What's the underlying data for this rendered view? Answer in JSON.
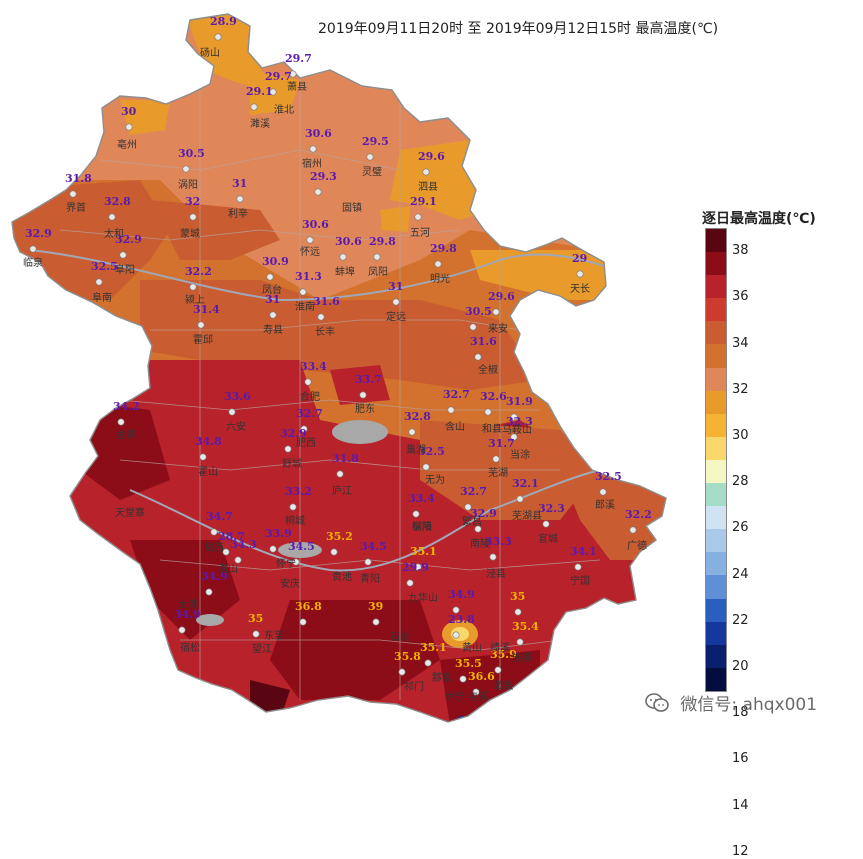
{
  "title": "2019年09月11日20时  至  2019年09月12日15时  最高温度(℃)",
  "legend": {
    "title": "逐日最高温度(℃)",
    "colors": [
      "#5a0612",
      "#8c0d18",
      "#b8222a",
      "#cc3b2e",
      "#c95d31",
      "#d2722e",
      "#e0875a",
      "#e89a2b",
      "#f5b335",
      "#fad76a",
      "#f4f7c4",
      "#a6ddc8",
      "#cfe3f3",
      "#a9c8ea",
      "#85b0e0",
      "#5f8fd6",
      "#2a5fc0",
      "#15389f",
      "#0a1f6e",
      "#040d3d"
    ],
    "labels": [
      "38",
      "36",
      "34",
      "32",
      "30",
      "28",
      "26",
      "24",
      "22",
      "20",
      "18",
      "16",
      "14",
      "12"
    ]
  },
  "watermark": "微信号: ahqx001",
  "stations": [
    {
      "name": "砀山",
      "value": "28.9",
      "color": "#5a1ab0"
    },
    {
      "name": "萧县",
      "value": "29.7",
      "color": "#5a1ab0"
    },
    {
      "name": "淮北",
      "value": "29.7",
      "color": "#5a1ab0"
    },
    {
      "name": "濉溪",
      "value": "29.1",
      "color": "#5a1ab0"
    },
    {
      "name": "亳州",
      "value": "30",
      "color": "#5a1ab0"
    },
    {
      "name": "宿州",
      "value": "30.6",
      "color": "#5a1ab0"
    },
    {
      "name": "灵璧",
      "value": "29.5",
      "color": "#5a1ab0"
    },
    {
      "name": "泗县",
      "value": "29.6",
      "color": "#5a1ab0"
    },
    {
      "name": "涡阳",
      "value": "30.5",
      "color": "#5a1ab0"
    },
    {
      "name": "固镇",
      "value": "29.3",
      "color": "#5a1ab0"
    },
    {
      "name": "临泉",
      "value": "31.8",
      "color": "#5a1ab0"
    },
    {
      "name": "界首",
      "value": "32.8",
      "color": "#5a1ab0"
    },
    {
      "name": "利辛",
      "value": "31",
      "color": "#5a1ab0"
    },
    {
      "name": "蒙城",
      "value": "32",
      "color": "#5a1ab0"
    },
    {
      "name": "五河",
      "value": "29.1",
      "color": "#5a1ab0"
    },
    {
      "name": "太和",
      "value": "32.9",
      "color": "#5a1ab0"
    },
    {
      "name": "阜阳",
      "value": "32.9",
      "color": "#5a1ab0"
    },
    {
      "name": "怀远",
      "value": "30.6",
      "color": "#5a1ab0"
    },
    {
      "name": "蚌埠",
      "value": "30.6",
      "color": "#5a1ab0"
    },
    {
      "name": "凤阳",
      "value": "29.8",
      "color": "#5a1ab0"
    },
    {
      "name": "明光",
      "value": "29.8",
      "color": "#5a1ab0"
    },
    {
      "name": "天长",
      "value": "29",
      "color": "#5a1ab0"
    },
    {
      "name": "阜南",
      "value": "32.5",
      "color": "#5a1ab0"
    },
    {
      "name": "颍上",
      "value": "32.2",
      "color": "#5a1ab0"
    },
    {
      "name": "凤台",
      "value": "30.9",
      "color": "#5a1ab0"
    },
    {
      "name": "淮南",
      "value": "31.3",
      "color": "#5a1ab0"
    },
    {
      "name": "定远",
      "value": "31",
      "color": "#5a1ab0"
    },
    {
      "name": "来安",
      "value": "29.6",
      "color": "#5a1ab0"
    },
    {
      "name": "霍邱",
      "value": "31.4",
      "color": "#5a1ab0"
    },
    {
      "name": "寿县",
      "value": "31",
      "color": "#5a1ab0"
    },
    {
      "name": "长丰",
      "value": "31.6",
      "color": "#5a1ab0"
    },
    {
      "name": "滁州",
      "value": "30.5",
      "color": "#5a1ab0"
    },
    {
      "name": "全椒",
      "value": "31.6",
      "color": "#5a1ab0"
    },
    {
      "name": "合肥",
      "value": "33.4",
      "color": "#5a1ab0"
    },
    {
      "name": "肥东",
      "value": "33.7",
      "color": "#5a1ab0"
    },
    {
      "name": "金寨",
      "value": "34.2",
      "color": "#5a1ab0"
    },
    {
      "name": "六安",
      "value": "33.6",
      "color": "#5a1ab0"
    },
    {
      "name": "肥西",
      "value": "32.7",
      "color": "#5a1ab0"
    },
    {
      "name": "含山",
      "value": "32.7",
      "color": "#5a1ab0"
    },
    {
      "name": "和县",
      "value": "32.6",
      "color": "#5a1ab0"
    },
    {
      "name": "马鞍山",
      "value": "31.9",
      "color": "#5a1ab0"
    },
    {
      "name": "巢湖",
      "value": "32.8",
      "color": "#5a1ab0"
    },
    {
      "name": "当涂",
      "value": "32.3",
      "color": "#5a1ab0"
    },
    {
      "name": "霍山",
      "value": "34.8",
      "color": "#5a1ab0"
    },
    {
      "name": "舒城",
      "value": "32.9",
      "color": "#5a1ab0"
    },
    {
      "name": "无为",
      "value": "32.5",
      "color": "#5a1ab0"
    },
    {
      "name": "芜湖",
      "value": "31.7",
      "color": "#5a1ab0"
    },
    {
      "name": "庐江",
      "value": "31.8",
      "color": "#5a1ab0"
    },
    {
      "name": "郎溪",
      "value": "32.5",
      "color": "#5a1ab0"
    },
    {
      "name": "桐城",
      "value": "33.2",
      "color": "#5a1ab0"
    },
    {
      "name": "枞阳",
      "value": "33.4",
      "color": "#5a1ab0"
    },
    {
      "name": "繁昌",
      "value": "32.7",
      "color": "#5a1ab0"
    },
    {
      "name": "芜湖县",
      "value": "32.1",
      "color": "#5a1ab0"
    },
    {
      "name": "宣城",
      "value": "32.3",
      "color": "#5a1ab0"
    },
    {
      "name": "广德",
      "value": "32.2",
      "color": "#5a1ab0"
    },
    {
      "name": "岳西",
      "value": "34.7",
      "color": "#5a1ab0"
    },
    {
      "name": "南陵",
      "value": "32.9",
      "color": "#5a1ab0"
    },
    {
      "name": "潜山",
      "value": "28.7",
      "color": "#5a1ab0"
    },
    {
      "name": "太湖",
      "value": "34.3",
      "color": "#5a1ab0"
    },
    {
      "name": "怀宁",
      "value": "33.9",
      "color": "#5a1ab0"
    },
    {
      "name": "安庆",
      "value": "34.5",
      "color": "#5a1ab0"
    },
    {
      "name": "池州",
      "value": "35.2",
      "color": "#f2b300"
    },
    {
      "name": "贵池",
      "value": "34.5",
      "color": "#5a1ab0"
    },
    {
      "name": "青阳",
      "value": "35.1",
      "color": "#f2b300"
    },
    {
      "name": "泾县",
      "value": "33.3",
      "color": "#5a1ab0"
    },
    {
      "name": "宁国",
      "value": "34.1",
      "color": "#5a1ab0"
    },
    {
      "name": "宿松",
      "value": "34.9",
      "color": "#5a1ab0"
    },
    {
      "name": "九华山",
      "value": "29.9",
      "color": "#5a1ab0"
    },
    {
      "name": "东至",
      "value": "36.8",
      "color": "#f2b300"
    },
    {
      "name": "石台",
      "value": "39",
      "color": "#f2b300"
    },
    {
      "name": "黄山区",
      "value": "34.9",
      "color": "#5a1ab0"
    },
    {
      "name": "绩溪",
      "value": "35",
      "color": "#f2b300"
    },
    {
      "name": "望江",
      "value": "35",
      "color": "#f2b300"
    },
    {
      "name": "黄山",
      "value": "23.8",
      "color": "#5a1ab0"
    },
    {
      "name": "旌德",
      "value": "35.4",
      "color": "#f2b300"
    },
    {
      "name": "宿松南",
      "value": "34.9",
      "color": "#5a1ab0"
    },
    {
      "name": "祁门",
      "value": "35.8",
      "color": "#f2b300"
    },
    {
      "name": "黟县",
      "value": "35.1",
      "color": "#f2b300"
    },
    {
      "name": "休宁",
      "value": "35.5",
      "color": "#f2b300"
    },
    {
      "name": "歙县",
      "value": "35.9",
      "color": "#f2b300"
    },
    {
      "name": "屯溪",
      "value": "36.6",
      "color": "#f2b300"
    }
  ],
  "place_labels": [
    "砀山",
    "萧县",
    "淮北",
    "濉溪",
    "亳州",
    "宿州",
    "灵璧",
    "泗县",
    "涡阳",
    "固镇",
    "界首",
    "太和",
    "利辛",
    "蒙城",
    "五河",
    "临泉",
    "阜阳",
    "怀远",
    "蚌埠",
    "凤阳",
    "明光",
    "天长",
    "阜南",
    "颍上",
    "凤台",
    "淮南",
    "定远",
    "来安",
    "霍邱",
    "寿县",
    "长丰",
    "全椒",
    "合肥",
    "肥东",
    "金寨",
    "六安",
    "肥西",
    "含山",
    "和县",
    "马鞍山",
    "巢湖",
    "当涂",
    "霍山",
    "舒城",
    "无为",
    "芜湖",
    "庐江",
    "郎溪",
    "天堂寨",
    "桐城",
    "枞阳",
    "繁昌",
    "芜湖县",
    "宣城",
    "广德",
    "岳西",
    "南陵",
    "潜山",
    "怀宁",
    "安庆",
    "贵池",
    "青阳",
    "泾县",
    "宁国",
    "宿松",
    "九华山",
    "东至",
    "太湖",
    "石台",
    "望江",
    "黄山",
    "旌德",
    "祁门",
    "黟县",
    "休宁",
    "歙县",
    "屯溪",
    "绩溪",
    "铜陵"
  ]
}
